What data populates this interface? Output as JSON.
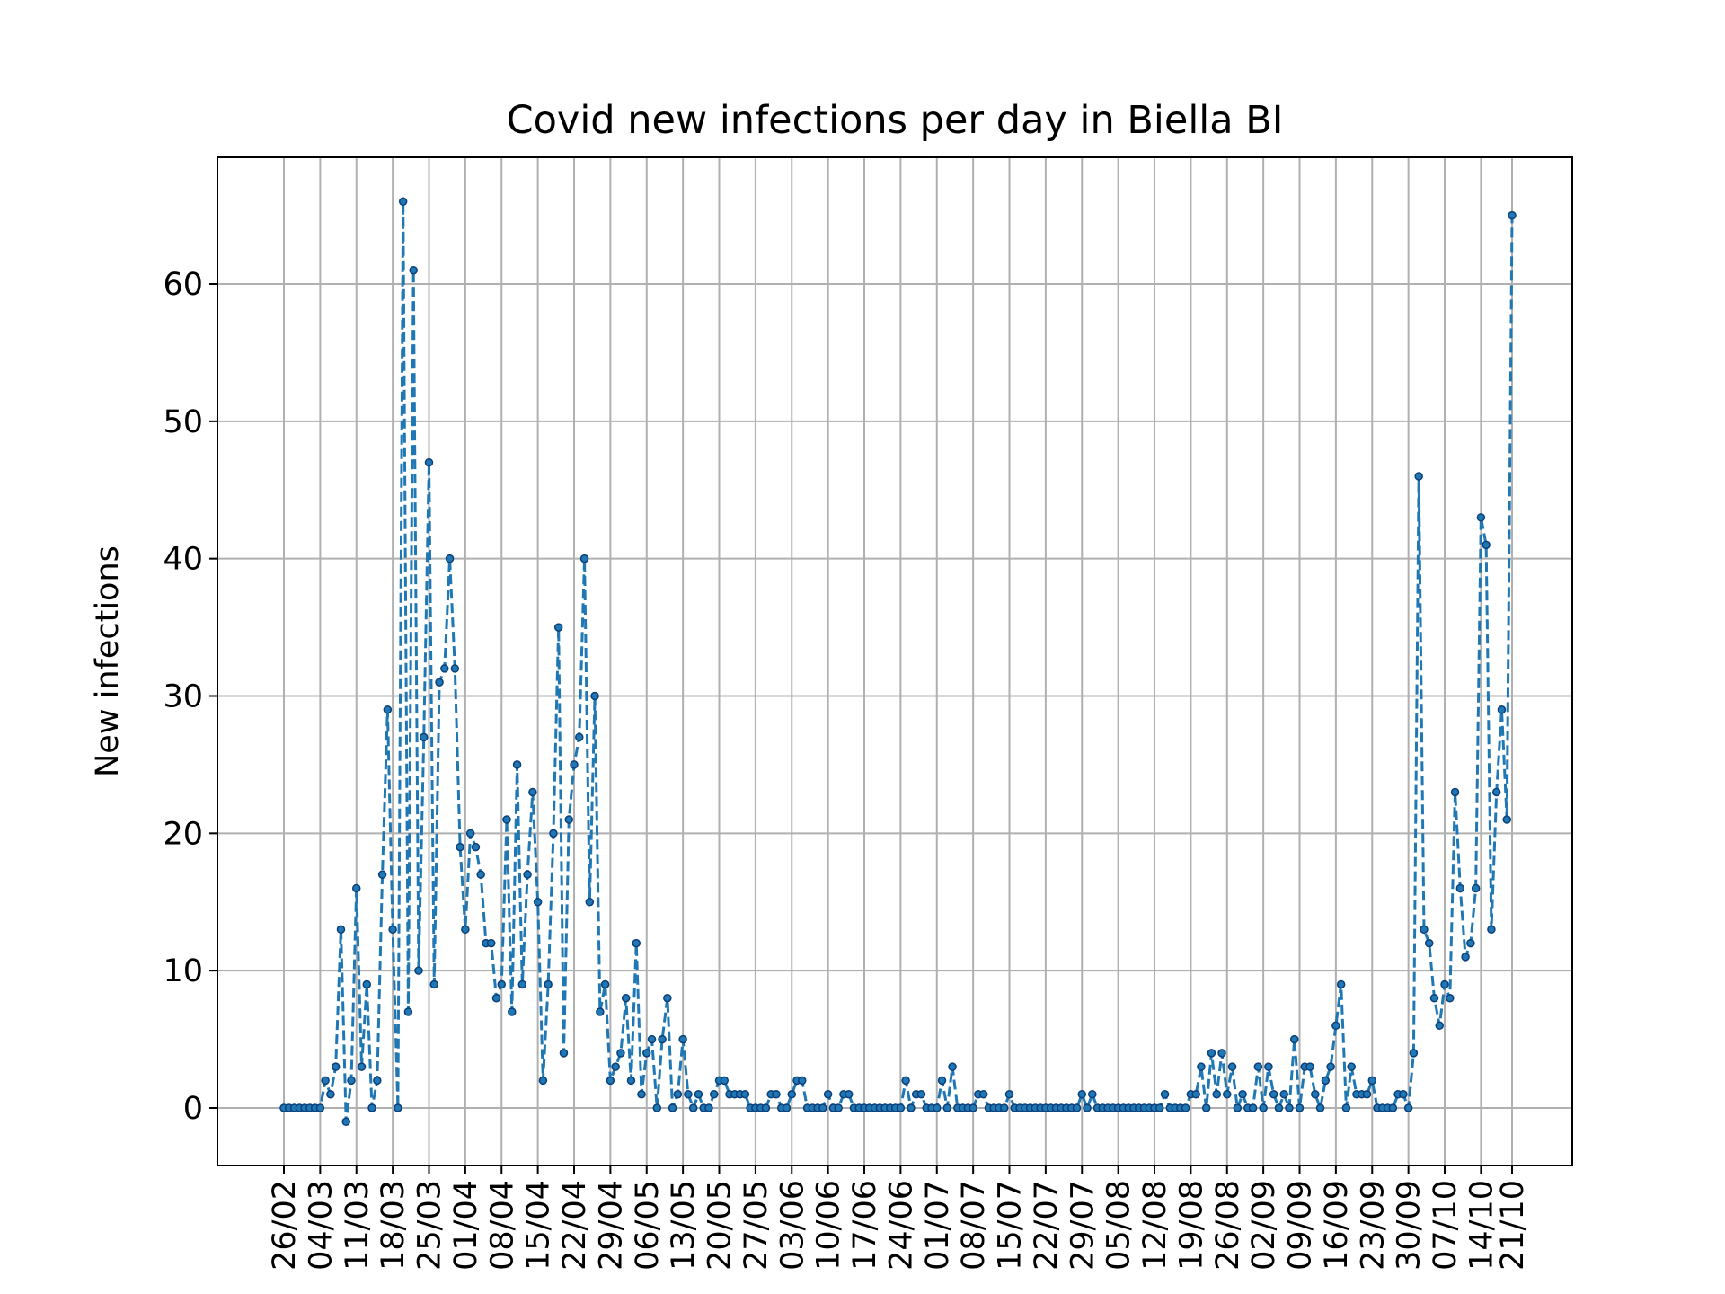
{
  "chart_data": {
    "type": "line",
    "title": "Covid new infections per day in Biella BI",
    "xlabel": "",
    "ylabel": "New infections",
    "ylim": [
      -4.5,
      69.3
    ],
    "yticks": [
      0,
      10,
      20,
      30,
      40,
      50,
      60
    ],
    "x_tick_labels": [
      "26/02",
      "04/03",
      "11/03",
      "18/03",
      "25/03",
      "01/04",
      "08/04",
      "15/04",
      "22/04",
      "29/04",
      "06/05",
      "13/05",
      "20/05",
      "27/05",
      "03/06",
      "10/06",
      "17/06",
      "24/06",
      "01/07",
      "08/07",
      "15/07",
      "22/07",
      "29/07",
      "05/08",
      "12/08",
      "19/08",
      "26/08",
      "02/09",
      "09/09",
      "16/09",
      "23/09",
      "30/09",
      "07/10",
      "14/10",
      "21/10"
    ],
    "grid": true,
    "line_style": "dashed",
    "marker": "dot",
    "color": "#1f77b4",
    "series": [
      {
        "values": [
          0,
          0,
          0,
          0,
          0,
          0,
          0,
          0,
          2,
          1,
          3,
          13,
          -1,
          2,
          16,
          3,
          9,
          0,
          2,
          17,
          29,
          13,
          0,
          66,
          7,
          61,
          10,
          27,
          47,
          9,
          31,
          32,
          40,
          32,
          19,
          13,
          20,
          19,
          17,
          12,
          12,
          8,
          9,
          21,
          7,
          25,
          9,
          17,
          23,
          15,
          2,
          9,
          20,
          35,
          4,
          21,
          25,
          27,
          40,
          15,
          30,
          7,
          9,
          2,
          3,
          4,
          8,
          2,
          12,
          1,
          4,
          5,
          0,
          5,
          8,
          0,
          1,
          5,
          1,
          0,
          1,
          0,
          0,
          1,
          2,
          2,
          1,
          1,
          1,
          1,
          0,
          0,
          0,
          0,
          1,
          1,
          0,
          0,
          1,
          2,
          2,
          0,
          0,
          0,
          0,
          1,
          0,
          0,
          1,
          1,
          0,
          0,
          0,
          0,
          0,
          0,
          0,
          0,
          0,
          0,
          2,
          0,
          1,
          1,
          0,
          0,
          0,
          2,
          0,
          3,
          0,
          0,
          0,
          0,
          1,
          1,
          0,
          0,
          0,
          0,
          1,
          0,
          0,
          0,
          0,
          0,
          0,
          0,
          0,
          0,
          0,
          0,
          0,
          0,
          1,
          0,
          1,
          0,
          0,
          0,
          0,
          0,
          0,
          0,
          0,
          0,
          0,
          0,
          0,
          0,
          1,
          0,
          0,
          0,
          0,
          1,
          1,
          3,
          0,
          4,
          1,
          4,
          1,
          3,
          0,
          1,
          0,
          0,
          3,
          0,
          3,
          1,
          0,
          1,
          0,
          5,
          0,
          3,
          3,
          1,
          0,
          2,
          3,
          6,
          9,
          0,
          3,
          1,
          1,
          1,
          2,
          0,
          0,
          0,
          0,
          1,
          1,
          0,
          4,
          46,
          13,
          12,
          8,
          6,
          9,
          8,
          23,
          16,
          11,
          12,
          16,
          43,
          41,
          13,
          23,
          29,
          21,
          65
        ]
      }
    ]
  }
}
